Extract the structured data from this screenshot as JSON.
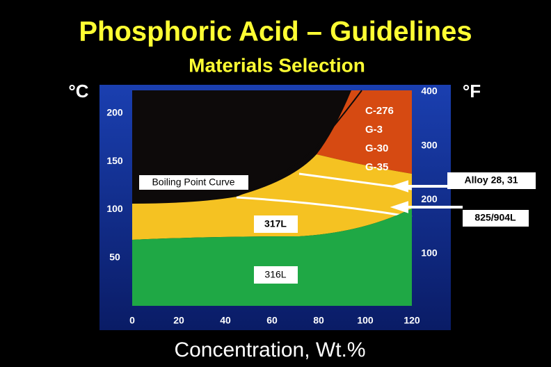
{
  "header": {
    "title": "Phosphoric Acid – Guidelines",
    "subtitle": "Materials Selection"
  },
  "axes": {
    "left_unit": "°C",
    "right_unit": "°F",
    "x_label": "Concentration, Wt.%",
    "x_ticks": [
      0,
      20,
      40,
      60,
      80,
      100,
      120
    ],
    "left_ticks": [
      50,
      100,
      150,
      200
    ],
    "right_ticks": [
      100,
      200,
      300,
      400
    ]
  },
  "annotations": {
    "boiling_curve": "Boiling Point Curve",
    "alloys": [
      "C-276",
      "G-3",
      "G-30",
      "G-35"
    ],
    "zone_317": "317L",
    "zone_316": "316L",
    "callouts": [
      "Alloy 28, 31",
      "825/904L"
    ]
  }
}
